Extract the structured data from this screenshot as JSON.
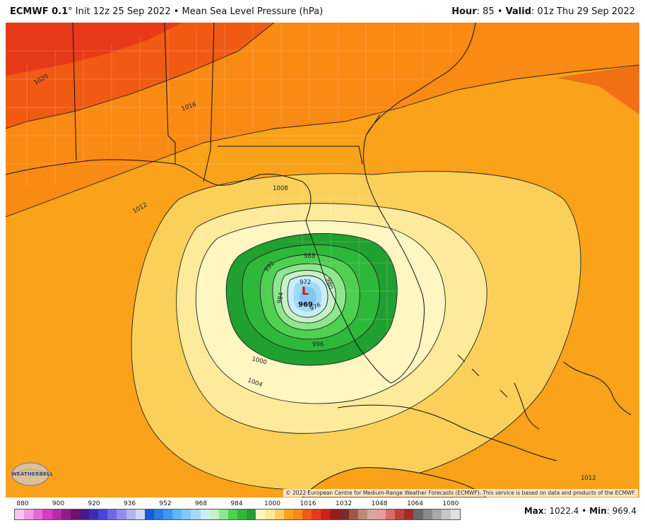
{
  "header": {
    "model": "ECMWF 0.1",
    "degree_mark": "°",
    "init": "Init 12z 25 Sep 2022",
    "separator": "•",
    "field": "Mean Sea Level Pressure (hPa)",
    "hour_label": "Hour",
    "hour_value": ": 85",
    "valid_label": "Valid",
    "valid_value": ": 01z Thu 29 Sep 2022"
  },
  "map": {
    "low_symbol": "L",
    "low_value": "969",
    "isobar_labels": [
      "1020",
      "1016",
      "1012",
      "1008",
      "1004",
      "1000",
      "996",
      "992",
      "988",
      "984",
      "980",
      "976",
      "972",
      "1012"
    ],
    "copyright": "© 2022 European Centre for Medium-Range Weather Forecasts (ECMWF). This service is based on data and products of the ECMWF.",
    "logo_text": "WEATHERBELL",
    "colors": {
      "p1024": "#e63a18",
      "p1020": "#f05a12",
      "p1016": "#f98a14",
      "p1012": "#f9a21a",
      "p1008": "#fbd05a",
      "p1004": "#fdea9a",
      "p1000": "#fff6c2",
      "p996": "#20a030",
      "p992": "#2eb83a",
      "p988": "#50d050",
      "p984": "#8ee68e",
      "p980": "#c6f2c6",
      "p976": "#c8eefa",
      "p972": "#a4d8f8",
      "p968": "#86c6f4"
    }
  },
  "colorbar": {
    "ticks": [
      "880",
      "900",
      "920",
      "936",
      "952",
      "968",
      "984",
      "1000",
      "1016",
      "1032",
      "1048",
      "1064",
      "1080"
    ],
    "colors": [
      "#f7c6f0",
      "#f09ae6",
      "#e86ad8",
      "#d83cc4",
      "#b82aa6",
      "#921c88",
      "#6a1470",
      "#4a1a8c",
      "#3a2ab8",
      "#4646d8",
      "#6a6ae8",
      "#8e8ef0",
      "#b4b4f4",
      "#d0d6f8",
      "#1a5ad8",
      "#2a7ae8",
      "#3a9af0",
      "#5ab8f4",
      "#86c6f4",
      "#a4d8f8",
      "#c8eefa",
      "#c6f2c6",
      "#8ee68e",
      "#50d050",
      "#2eb83a",
      "#20a030",
      "#fff6c2",
      "#fdea9a",
      "#fbd05a",
      "#f9a21a",
      "#f98a14",
      "#f05a12",
      "#e63a18",
      "#c8241a",
      "#9c1a1a",
      "#7a2a2a",
      "#9a5a4a",
      "#c08a7a",
      "#d8a8a0",
      "#e89a9a",
      "#d86a6a",
      "#c04040",
      "#a02a2a",
      "#6a6a6a",
      "#8a8a8a",
      "#a8a8a8",
      "#c6c6c6",
      "#e0e0e0"
    ]
  },
  "stats": {
    "max_label": "Max",
    "max_value": ": 1022.4",
    "sep": " • ",
    "min_label": "Min",
    "min_value": ": 969.4"
  }
}
